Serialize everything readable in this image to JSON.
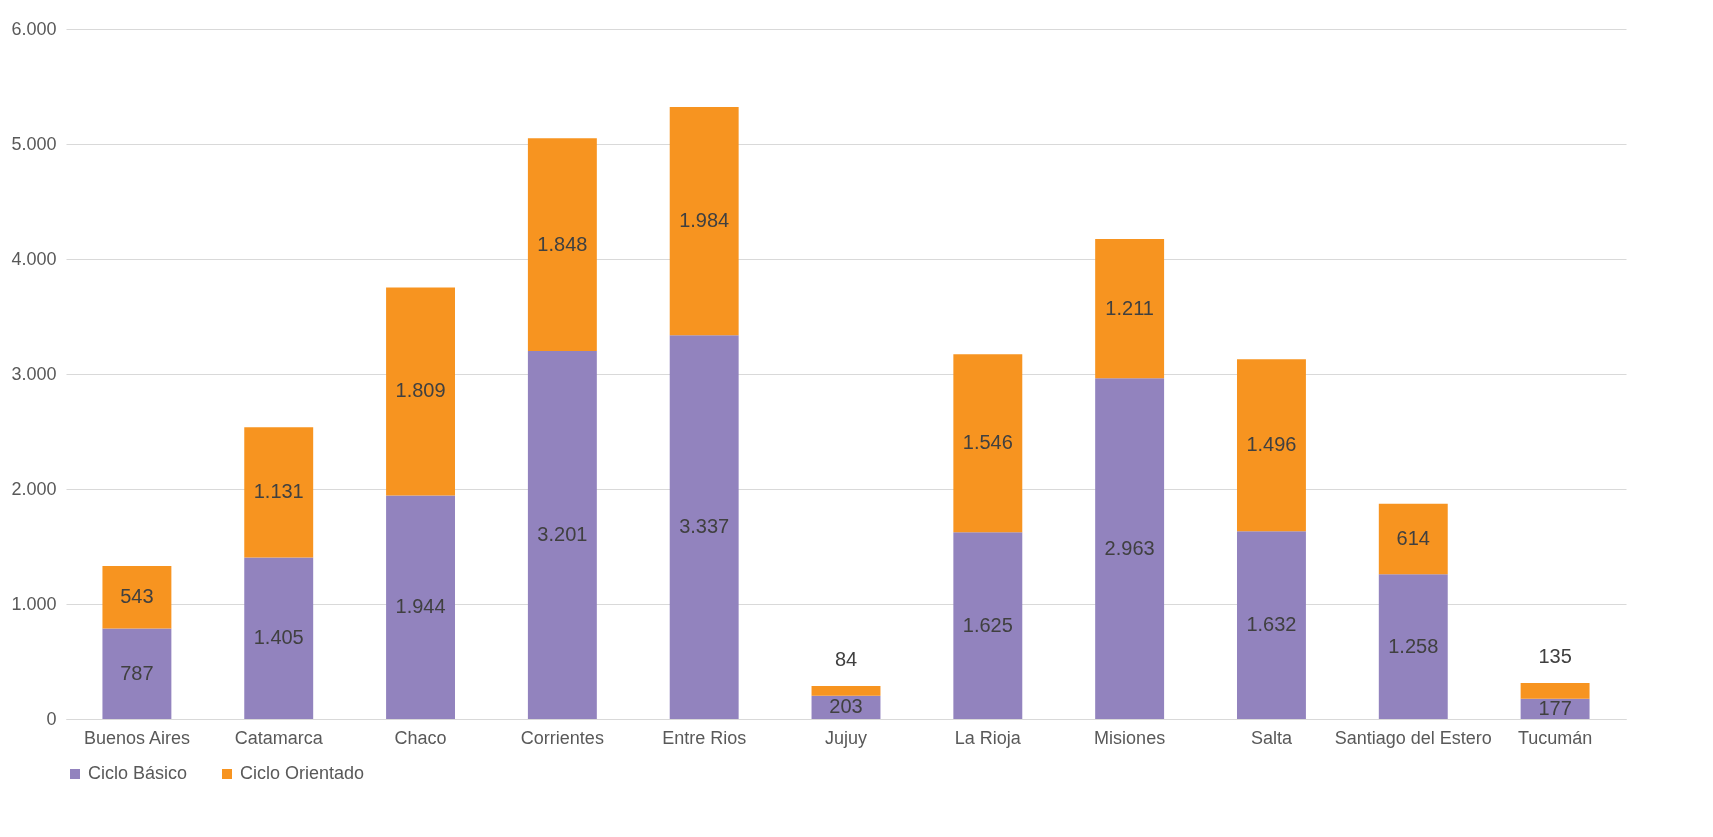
{
  "chart_data": {
    "type": "bar",
    "stacked": true,
    "categories": [
      "Buenos Aires",
      "Catamarca",
      "Chaco",
      "Corrientes",
      "Entre Rios",
      "Jujuy",
      "La Rioja",
      "Misiones",
      "Salta",
      "Santiago del Estero",
      "Tucumán"
    ],
    "series": [
      {
        "name": "Ciclo Básico",
        "color": "#9283be",
        "values": [
          787,
          1405,
          1944,
          3201,
          3337,
          203,
          1625,
          2963,
          1632,
          1258,
          177
        ],
        "value_labels": [
          "787",
          "1.405",
          "1.944",
          "3.201",
          "3.337",
          "203",
          "1.625",
          "2.963",
          "1.632",
          "1.258",
          "177"
        ]
      },
      {
        "name": "Ciclo Orientado",
        "color": "#f79420",
        "values": [
          543,
          1131,
          1809,
          1848,
          1984,
          84,
          1546,
          1211,
          1496,
          614,
          135
        ],
        "value_labels": [
          "543",
          "1.131",
          "1.809",
          "1.848",
          "1.984",
          "84",
          "1.546",
          "1.211",
          "1.496",
          "614",
          "135"
        ]
      }
    ],
    "ylim": [
      0,
      6000
    ],
    "yticks": [
      {
        "value": 0,
        "label": "0"
      },
      {
        "value": 1000,
        "label": "1.000"
      },
      {
        "value": 2000,
        "label": "2.000"
      },
      {
        "value": 3000,
        "label": "3.000"
      },
      {
        "value": 4000,
        "label": "4.000"
      },
      {
        "value": 5000,
        "label": "5.000"
      },
      {
        "value": 6000,
        "label": "6.000"
      }
    ],
    "grid": "y",
    "legend": "bottom"
  }
}
